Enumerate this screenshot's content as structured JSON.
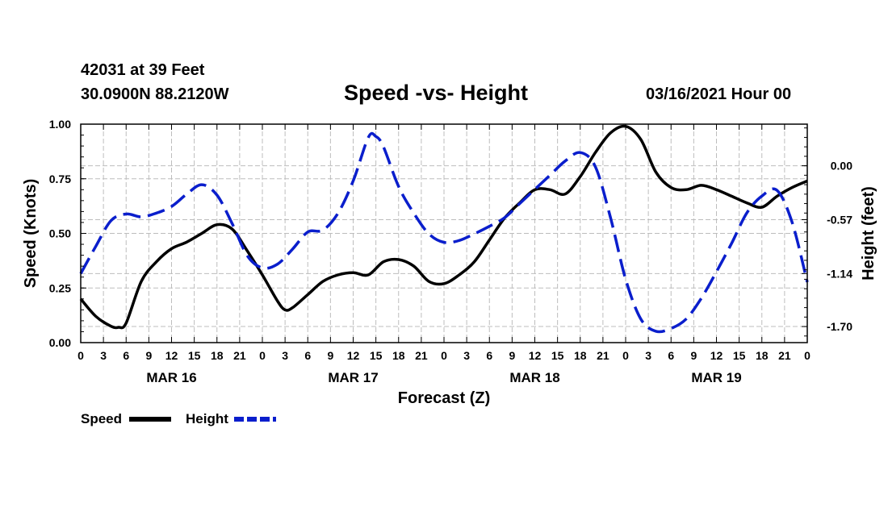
{
  "header": {
    "station": "42031 at 39 Feet",
    "coords": "30.0900N 88.2120W",
    "title": "Speed -vs- Height",
    "timestamp": "03/16/2021 Hour 00"
  },
  "chart_data": {
    "type": "line",
    "title": "Speed -vs- Height",
    "xlabel": "Forecast (Z)",
    "ylabel": "Speed (Knots)",
    "y2label": "Height (feet)",
    "x_unit": "forecast hour",
    "xlim": [
      0,
      96
    ],
    "ylim": [
      0,
      1
    ],
    "y2lim": [
      -1.87,
      0.44
    ],
    "grid": true,
    "x_ticks": [
      0,
      3,
      6,
      9,
      12,
      15,
      18,
      21,
      24,
      27,
      30,
      33,
      36,
      39,
      42,
      45,
      48,
      51,
      54,
      57,
      60,
      63,
      66,
      69,
      72,
      75,
      78,
      81,
      84,
      87,
      90,
      93,
      96
    ],
    "x_tick_labels": [
      "0",
      "3",
      "6",
      "9",
      "12",
      "15",
      "18",
      "21",
      "0",
      "3",
      "6",
      "9",
      "12",
      "15",
      "18",
      "21",
      "0",
      "3",
      "6",
      "9",
      "12",
      "15",
      "18",
      "21",
      "0",
      "3",
      "6",
      "9",
      "12",
      "15",
      "18",
      "21",
      "0"
    ],
    "y_ticks": [
      0,
      0.25,
      0.5,
      0.75,
      1
    ],
    "y_tick_labels": [
      "0.00",
      "0.25",
      "0.50",
      "0.75",
      "1.00"
    ],
    "y2_ticks": [
      0,
      -0.57,
      -1.14,
      -1.7
    ],
    "y2_tick_labels": [
      "0.00",
      "-0.57",
      "-1.14",
      "-1.70"
    ],
    "day_labels": [
      {
        "label": "MAR 16",
        "x": 12
      },
      {
        "label": "MAR 17",
        "x": 36
      },
      {
        "label": "MAR 18",
        "x": 60
      },
      {
        "label": "MAR 19",
        "x": 84
      }
    ],
    "series": [
      {
        "name": "Speed",
        "axis": "left",
        "color": "#000000",
        "style": "solid",
        "x": [
          0,
          2,
          4,
          5,
          6,
          8,
          10,
          12,
          14,
          16,
          18,
          20,
          22,
          24,
          26,
          27,
          28,
          30,
          32,
          34,
          36,
          38,
          40,
          42,
          44,
          46,
          48,
          50,
          52,
          54,
          56,
          58,
          60,
          62,
          64,
          66,
          68,
          70,
          72,
          74,
          76,
          78,
          80,
          82,
          84,
          86,
          88,
          90,
          92,
          94,
          96
        ],
        "y": [
          0.2,
          0.12,
          0.075,
          0.07,
          0.09,
          0.28,
          0.37,
          0.43,
          0.46,
          0.5,
          0.54,
          0.52,
          0.42,
          0.31,
          0.19,
          0.15,
          0.16,
          0.22,
          0.28,
          0.31,
          0.32,
          0.31,
          0.37,
          0.38,
          0.35,
          0.28,
          0.27,
          0.31,
          0.37,
          0.47,
          0.57,
          0.64,
          0.7,
          0.7,
          0.68,
          0.76,
          0.87,
          0.96,
          0.99,
          0.93,
          0.78,
          0.71,
          0.7,
          0.72,
          0.7,
          0.67,
          0.64,
          0.62,
          0.67,
          0.71,
          0.74
        ]
      },
      {
        "name": "Height",
        "axis": "right",
        "color": "#0a1ecc",
        "style": "dashed",
        "x": [
          0,
          2,
          4,
          6,
          8,
          10,
          12,
          14,
          16,
          18,
          20,
          22,
          24,
          26,
          28,
          30,
          32,
          34,
          36,
          38,
          39,
          40,
          42,
          44,
          46,
          48,
          50,
          52,
          54,
          56,
          58,
          60,
          62,
          64,
          66,
          68,
          70,
          72,
          74,
          76,
          78,
          80,
          82,
          84,
          86,
          88,
          90,
          92,
          94,
          96
        ],
        "y": [
          -1.14,
          -0.85,
          -0.58,
          -0.51,
          -0.54,
          -0.5,
          -0.43,
          -0.3,
          -0.2,
          -0.31,
          -0.61,
          -0.95,
          -1.08,
          -1.04,
          -0.88,
          -0.7,
          -0.68,
          -0.5,
          -0.16,
          0.3,
          0.31,
          0.2,
          -0.22,
          -0.5,
          -0.72,
          -0.81,
          -0.79,
          -0.72,
          -0.64,
          -0.55,
          -0.4,
          -0.25,
          -0.1,
          0.05,
          0.14,
          -0.01,
          -0.55,
          -1.2,
          -1.62,
          -1.75,
          -1.72,
          -1.62,
          -1.4,
          -1.12,
          -0.82,
          -0.5,
          -0.32,
          -0.26,
          -0.6,
          -1.23
        ]
      }
    ]
  },
  "legend": {
    "speed_label": "Speed",
    "height_label": "Height"
  }
}
